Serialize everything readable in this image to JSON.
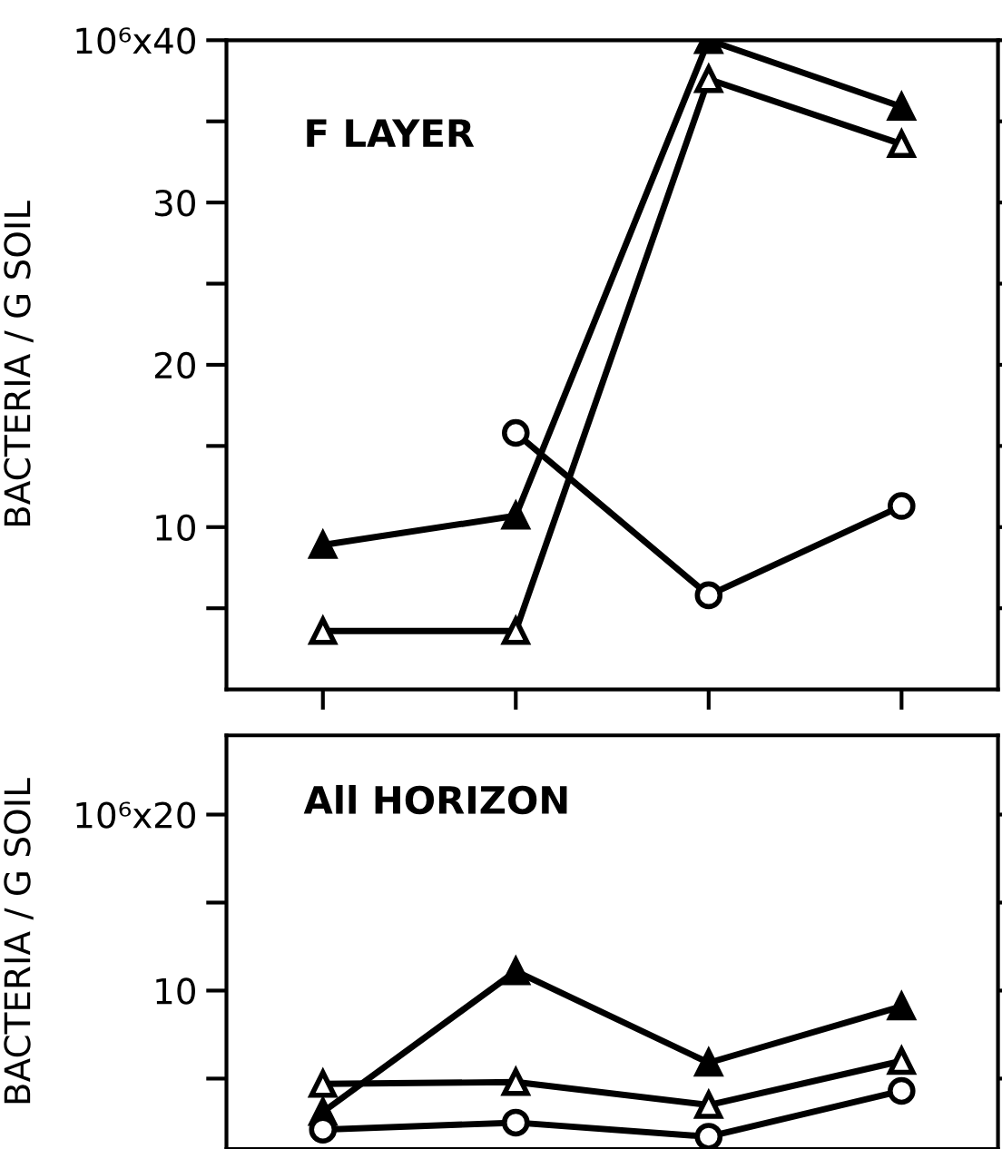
{
  "chart_data": [
    {
      "type": "line",
      "ylabel": "BACTERIA / G SOIL",
      "annotations": [
        "F LAYER",
        "10⁶x"
      ],
      "categories": [
        null,
        null,
        null,
        null
      ],
      "ylim": [
        0,
        40
      ],
      "yticks": [
        {
          "value": 5,
          "label": null
        },
        10,
        {
          "value": 15,
          "label": null
        },
        20,
        {
          "value": 25,
          "label": null
        },
        30,
        {
          "value": 35,
          "label": null
        },
        40
      ],
      "tick_labels": "y",
      "series": [
        {
          "color": "#000000",
          "marker": "triangle",
          "values": [
            8.9,
            10.7,
            40,
            35.9
          ]
        },
        {
          "color": "#000000",
          "marker": "triangle",
          "values": [
            3.6,
            3.6,
            37.6,
            33.6
          ]
        },
        {
          "color": "#000000",
          "marker": "circle",
          "values": [
            null,
            15.8,
            5.8,
            11.3
          ]
        }
      ]
    },
    {
      "type": "line",
      "ylabel": "BACTERIA / G SOIL",
      "annotations": [
        "All HORIZON",
        "10⁶x"
      ],
      "categories": [
        null,
        null,
        null,
        null
      ],
      "ylim": [
        1,
        24.5
      ],
      "yticks": [
        {
          "value": 5,
          "label": null
        },
        10,
        {
          "value": 15,
          "label": null
        },
        20
      ],
      "tick_labels": "y",
      "series": [
        {
          "color": "#000000",
          "marker": "triangle",
          "values": [
            3.1,
            11.1,
            5.9,
            9.1
          ]
        },
        {
          "color": "#000000",
          "marker": "triangle",
          "values": [
            4.7,
            4.8,
            3.5,
            6.0
          ]
        },
        {
          "color": "#000000",
          "marker": "circle",
          "values": [
            2.1,
            2.5,
            1.7,
            4.3
          ]
        }
      ]
    }
  ]
}
